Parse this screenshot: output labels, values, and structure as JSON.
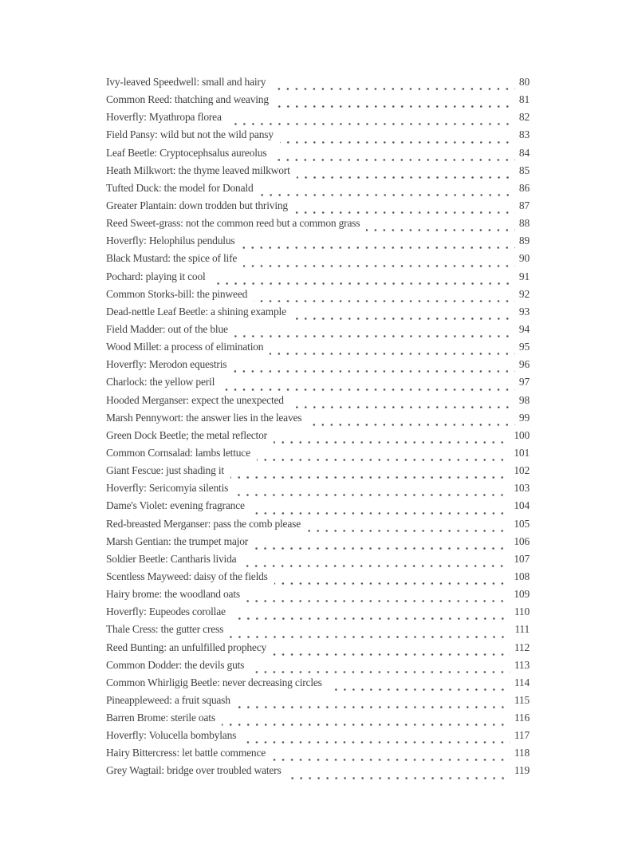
{
  "toc": {
    "entries": [
      {
        "label": "Ivy-leaved Speedwell: small and hairy",
        "page": "80"
      },
      {
        "label": "Common Reed: thatching and weaving",
        "page": "81"
      },
      {
        "label": "Hoverfly: Myathropa florea",
        "page": "82"
      },
      {
        "label": "Field Pansy: wild but not the wild pansy",
        "page": "83"
      },
      {
        "label": "Leaf Beetle: Cryptocephsalus aureolus",
        "page": "84"
      },
      {
        "label": "Heath Milkwort: the thyme leaved milkwort",
        "page": "85"
      },
      {
        "label": "Tufted Duck: the model for Donald",
        "page": "86"
      },
      {
        "label": "Greater Plantain: down trodden but thriving",
        "page": "87"
      },
      {
        "label": "Reed Sweet-grass: not the common reed but a common grass",
        "page": "88"
      },
      {
        "label": "Hoverfly: Helophilus pendulus",
        "page": "89"
      },
      {
        "label": "Black Mustard: the spice of life",
        "page": "90"
      },
      {
        "label": "Pochard: playing it cool",
        "page": "91"
      },
      {
        "label": "Common Storks-bill: the pinweed",
        "page": "92"
      },
      {
        "label": "Dead-nettle Leaf Beetle: a shining example",
        "page": "93"
      },
      {
        "label": "Field Madder: out of the blue",
        "page": "94"
      },
      {
        "label": "Wood Millet: a process of elimination",
        "page": "95"
      },
      {
        "label": "Hoverfly: Merodon equestris",
        "page": "96"
      },
      {
        "label": "Charlock: the yellow peril",
        "page": "97"
      },
      {
        "label": "Hooded Merganser: expect the unexpected",
        "page": "98"
      },
      {
        "label": "Marsh Pennywort: the answer lies in the leaves",
        "page": "99"
      },
      {
        "label": "Green Dock Beetle; the metal reflector",
        "page": "100"
      },
      {
        "label": "Common Cornsalad: lambs lettuce",
        "page": "101"
      },
      {
        "label": "Giant Fescue: just shading it",
        "page": "102"
      },
      {
        "label": "Hoverfly: Sericomyia silentis",
        "page": "103"
      },
      {
        "label": "Dame's Violet: evening fragrance",
        "page": "104"
      },
      {
        "label": "Red-breasted Merganser: pass the comb please",
        "page": "105"
      },
      {
        "label": "Marsh Gentian: the trumpet major",
        "page": "106"
      },
      {
        "label": "Soldier Beetle: Cantharis livida",
        "page": "107"
      },
      {
        "label": "Scentless Mayweed: daisy of the fields",
        "page": "108"
      },
      {
        "label": "Hairy brome: the woodland oats",
        "page": "109"
      },
      {
        "label": "Hoverfly: Eupeodes corollae",
        "page": "110"
      },
      {
        "label": "Thale Cress: the gutter cress",
        "page": "111"
      },
      {
        "label": "Reed Bunting: an unfulfilled prophecy",
        "page": "112"
      },
      {
        "label": "Common Dodder: the devils guts",
        "page": "113"
      },
      {
        "label": "Common Whirligig Beetle: never decreasing circles",
        "page": "114"
      },
      {
        "label": "Pineappleweed: a fruit squash",
        "page": "115"
      },
      {
        "label": "Barren Brome: sterile oats",
        "page": "116"
      },
      {
        "label": "Hoverfly: Volucella bombylans",
        "page": "117"
      },
      {
        "label": "Hairy Bittercress: let battle commence",
        "page": "118"
      },
      {
        "label": "Grey Wagtail: bridge over troubled waters",
        "page": "119"
      }
    ]
  }
}
